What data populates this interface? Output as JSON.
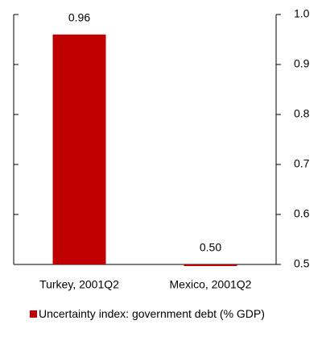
{
  "chart_data": {
    "type": "bar",
    "categories": [
      "Turkey, 2001Q2",
      "Mexico, 2001Q2"
    ],
    "series": [
      {
        "name": "Uncertainty index: government debt (% GDP)",
        "color": "#c00000",
        "values": [
          0.96,
          0.5
        ],
        "value_labels": [
          "0.96",
          "0.50"
        ]
      }
    ],
    "ylim": [
      0.5,
      1.0
    ],
    "yticks": [
      0.5,
      0.6,
      0.7,
      0.8,
      0.9,
      {
        "value": 1.0,
        "label": "1.0"
      }
    ],
    "y_axis_side": "right",
    "grid": false,
    "legend": "bottom-left"
  }
}
